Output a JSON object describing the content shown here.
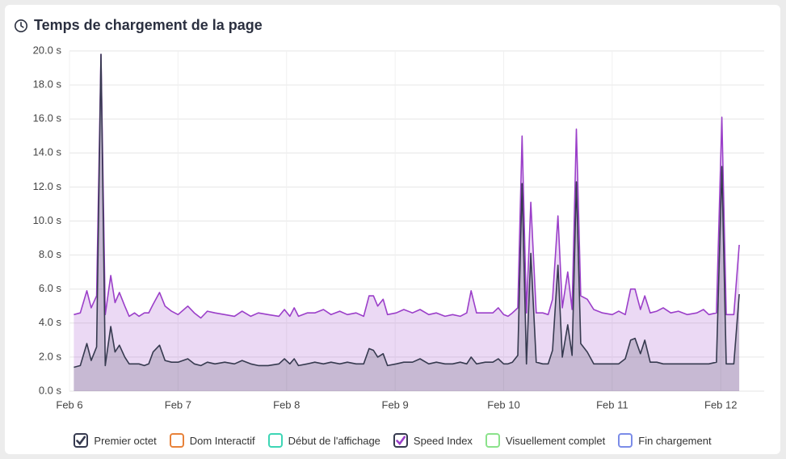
{
  "chart_data": {
    "type": "area",
    "title": "Temps de chargement de la page",
    "x": [
      6.04,
      6.1,
      6.16,
      6.2,
      6.25,
      6.29,
      6.33,
      6.38,
      6.42,
      6.46,
      6.51,
      6.55,
      6.6,
      6.64,
      6.69,
      6.73,
      6.77,
      6.83,
      6.88,
      6.94,
      7.0,
      7.09,
      7.15,
      7.21,
      7.27,
      7.34,
      7.43,
      7.52,
      7.59,
      7.67,
      7.74,
      7.83,
      7.93,
      7.98,
      8.03,
      8.07,
      8.11,
      8.19,
      8.26,
      8.34,
      8.41,
      8.49,
      8.56,
      8.64,
      8.71,
      8.76,
      8.8,
      8.84,
      8.89,
      8.93,
      9.01,
      9.08,
      9.16,
      9.23,
      9.31,
      9.38,
      9.46,
      9.53,
      9.6,
      9.66,
      9.7,
      9.75,
      9.83,
      9.9,
      9.95,
      10.0,
      10.04,
      10.08,
      10.13,
      10.17,
      10.21,
      10.25,
      10.3,
      10.36,
      10.41,
      10.45,
      10.5,
      10.54,
      10.59,
      10.63,
      10.67,
      10.71,
      10.77,
      10.83,
      10.91,
      11.0,
      11.06,
      11.12,
      11.17,
      11.21,
      11.26,
      11.3,
      11.35,
      11.41,
      11.47,
      11.54,
      11.61,
      11.69,
      11.78,
      11.84,
      11.89,
      11.96,
      12.01,
      12.05,
      12.12,
      12.17
    ],
    "series": [
      {
        "name": "Premier octet",
        "color": "#363a4f",
        "visible": true,
        "values": [
          1.4,
          1.5,
          2.8,
          1.8,
          2.6,
          19.8,
          1.5,
          3.8,
          2.3,
          2.7,
          2.0,
          1.6,
          1.6,
          1.6,
          1.5,
          1.6,
          2.3,
          2.7,
          1.8,
          1.7,
          1.7,
          1.9,
          1.6,
          1.5,
          1.7,
          1.6,
          1.7,
          1.6,
          1.8,
          1.6,
          1.5,
          1.5,
          1.6,
          1.9,
          1.6,
          1.9,
          1.5,
          1.6,
          1.7,
          1.6,
          1.7,
          1.6,
          1.7,
          1.6,
          1.6,
          2.5,
          2.4,
          2.0,
          2.2,
          1.5,
          1.6,
          1.7,
          1.7,
          1.9,
          1.6,
          1.7,
          1.6,
          1.6,
          1.7,
          1.6,
          2.0,
          1.6,
          1.7,
          1.7,
          1.9,
          1.6,
          1.6,
          1.7,
          2.1,
          12.2,
          1.6,
          8.1,
          1.7,
          1.6,
          1.6,
          2.4,
          7.4,
          2.0,
          3.9,
          2.1,
          12.3,
          2.8,
          2.3,
          1.6,
          1.6,
          1.6,
          1.6,
          1.9,
          3.0,
          3.1,
          2.2,
          3.0,
          1.7,
          1.7,
          1.6,
          1.6,
          1.6,
          1.6,
          1.6,
          1.6,
          1.6,
          1.7,
          13.2,
          1.6,
          1.6,
          5.7
        ]
      },
      {
        "name": "Dom Interactif",
        "color": "#e8823a",
        "visible": false
      },
      {
        "name": "Début de l'affichage",
        "color": "#3dd6b5",
        "visible": false
      },
      {
        "name": "Speed Index",
        "color": "#9b3fc9",
        "visible": true,
        "values": [
          4.5,
          4.6,
          5.9,
          4.9,
          5.6,
          19.8,
          4.5,
          6.8,
          5.2,
          5.8,
          5.0,
          4.4,
          4.6,
          4.4,
          4.6,
          4.6,
          5.1,
          5.8,
          5.0,
          4.7,
          4.5,
          5.0,
          4.6,
          4.3,
          4.7,
          4.6,
          4.5,
          4.4,
          4.7,
          4.4,
          4.6,
          4.5,
          4.4,
          4.8,
          4.4,
          4.9,
          4.4,
          4.6,
          4.6,
          4.8,
          4.5,
          4.7,
          4.5,
          4.6,
          4.4,
          5.6,
          5.6,
          5.0,
          5.4,
          4.5,
          4.6,
          4.8,
          4.6,
          4.8,
          4.5,
          4.6,
          4.4,
          4.5,
          4.4,
          4.6,
          5.9,
          4.6,
          4.6,
          4.6,
          4.9,
          4.5,
          4.4,
          4.6,
          4.9,
          15.0,
          4.6,
          11.1,
          4.6,
          4.6,
          4.5,
          5.4,
          10.3,
          4.9,
          7.0,
          4.8,
          15.4,
          5.6,
          5.4,
          4.8,
          4.6,
          4.5,
          4.7,
          4.5,
          6.0,
          6.0,
          4.8,
          5.6,
          4.6,
          4.7,
          4.9,
          4.6,
          4.7,
          4.5,
          4.6,
          4.8,
          4.5,
          4.6,
          16.1,
          4.5,
          4.5,
          8.6
        ]
      },
      {
        "name": "Visuellement complet",
        "color": "#8be28b",
        "visible": false
      },
      {
        "name": "Fin chargement",
        "color": "#7b8ce8",
        "visible": false
      }
    ],
    "xlim": [
      6,
      12.4
    ],
    "xticks": [
      {
        "value": 6,
        "label": "Feb 6"
      },
      {
        "value": 7,
        "label": "Feb 7"
      },
      {
        "value": 8,
        "label": "Feb 8"
      },
      {
        "value": 9,
        "label": "Feb 9"
      },
      {
        "value": 10,
        "label": "Feb 10"
      },
      {
        "value": 11,
        "label": "Feb 11"
      },
      {
        "value": 12,
        "label": "Feb 12"
      }
    ],
    "ylim": [
      0,
      20
    ],
    "yticks": [
      {
        "value": 0,
        "label": "0.0 s"
      },
      {
        "value": 2,
        "label": "2.0 s"
      },
      {
        "value": 4,
        "label": "4.0 s"
      },
      {
        "value": 6,
        "label": "6.0 s"
      },
      {
        "value": 8,
        "label": "8.0 s"
      },
      {
        "value": 10,
        "label": "10.0 s"
      },
      {
        "value": 12,
        "label": "12.0 s"
      },
      {
        "value": 14,
        "label": "14.0 s"
      },
      {
        "value": 16,
        "label": "16.0 s"
      },
      {
        "value": 18,
        "label": "18.0 s"
      },
      {
        "value": 20,
        "label": "20.0 s"
      }
    ],
    "grid": true
  }
}
